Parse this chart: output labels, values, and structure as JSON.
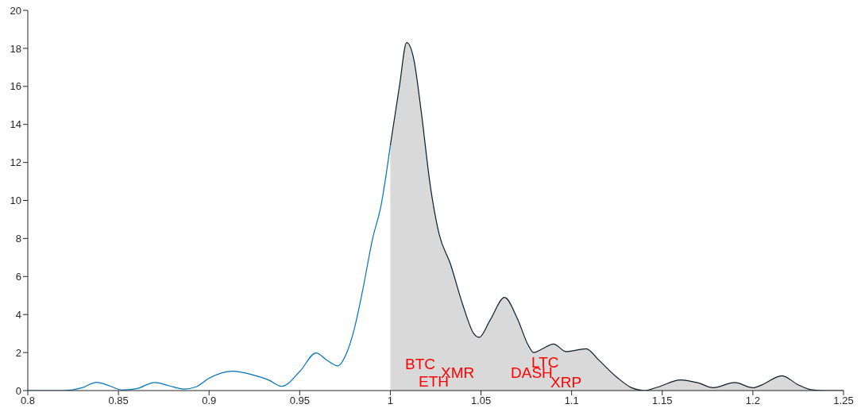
{
  "chart_data": {
    "type": "line",
    "series": [
      {
        "type": "line",
        "color": "#0072bd",
        "x": [
          0.8,
          0.82,
          0.83,
          0.838,
          0.845,
          0.852,
          0.86,
          0.87,
          0.878,
          0.886,
          0.893,
          0.9,
          0.913,
          0.925,
          0.933,
          0.94,
          0.95,
          0.959,
          0.965,
          0.971,
          0.976,
          0.98,
          0.985,
          0.99,
          0.995,
          1.0
        ],
        "values": [
          0,
          0,
          0.15,
          0.43,
          0.25,
          0.03,
          0.1,
          0.42,
          0.25,
          0.08,
          0.2,
          0.65,
          1.02,
          0.8,
          0.55,
          0.22,
          1.0,
          1.98,
          1.6,
          1.3,
          2.0,
          3.2,
          5.4,
          7.9,
          9.8,
          12.9
        ]
      },
      {
        "type": "area",
        "color": "#d9d9d9",
        "x": [
          1.0,
          1.005,
          1.009,
          1.013,
          1.017,
          1.022,
          1.027,
          1.033,
          1.04,
          1.046,
          1.049,
          1.055,
          1.063,
          1.07,
          1.076,
          1.079,
          1.084,
          1.09,
          1.097,
          1.108,
          1.115,
          1.125,
          1.133,
          1.14,
          1.148,
          1.16,
          1.17,
          1.178,
          1.19,
          1.2,
          1.205,
          1.216,
          1.225,
          1.232,
          1.24,
          1.25
        ],
        "values": [
          12.9,
          16.0,
          18.3,
          17.4,
          14.7,
          10.8,
          8.2,
          6.7,
          4.5,
          3.0,
          2.8,
          3.7,
          4.9,
          3.8,
          2.4,
          2.0,
          2.2,
          2.45,
          2.05,
          2.2,
          1.6,
          0.7,
          0.15,
          0,
          0.2,
          0.56,
          0.4,
          0.15,
          0.42,
          0.15,
          0.3,
          0.78,
          0.3,
          0.05,
          0,
          0
        ]
      }
    ],
    "xlim": [
      0.8,
      1.25
    ],
    "xticks": [
      0.8,
      0.85,
      0.9,
      0.95,
      1,
      1.05,
      1.1,
      1.15,
      1.2,
      1.25
    ],
    "ylim": [
      0,
      20
    ],
    "yticks": [
      0,
      2,
      4,
      6,
      8,
      10,
      12,
      14,
      16,
      18,
      20
    ],
    "grid": false,
    "marker": "none",
    "line_style": "solid",
    "annotations": [
      "BTC",
      "ETH",
      "XMR",
      "LTC",
      "DASH",
      "XRP"
    ]
  }
}
